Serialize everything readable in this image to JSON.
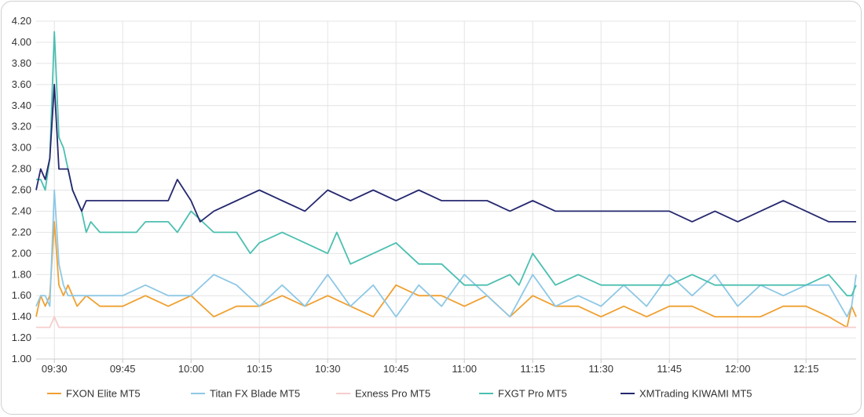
{
  "chart_data": {
    "type": "line",
    "title": "",
    "xlabel": "",
    "ylabel": "",
    "ylim": [
      1.0,
      4.2
    ],
    "yticks": [
      "1.00",
      "1.20",
      "1.40",
      "1.60",
      "1.80",
      "2.00",
      "2.20",
      "2.40",
      "2.60",
      "2.80",
      "3.00",
      "3.20",
      "3.40",
      "3.60",
      "3.80",
      "4.00",
      "4.20"
    ],
    "xlim": [
      "09:26",
      "12:26"
    ],
    "xticks": [
      "09:30",
      "09:45",
      "10:00",
      "10:15",
      "10:30",
      "10:45",
      "11:00",
      "11:15",
      "11:30",
      "11:45",
      "12:00",
      "12:15"
    ],
    "grid": true,
    "legend_position": "bottom",
    "series": [
      {
        "name": "FXON Elite MT5",
        "color": "#f0a030",
        "x": [
          "09:26",
          "09:27",
          "09:28",
          "09:29",
          "09:30",
          "09:31",
          "09:32",
          "09:33",
          "09:35",
          "09:37",
          "09:40",
          "09:45",
          "09:50",
          "09:55",
          "10:00",
          "10:05",
          "10:10",
          "10:15",
          "10:20",
          "10:25",
          "10:30",
          "10:35",
          "10:40",
          "10:45",
          "10:50",
          "10:55",
          "11:00",
          "11:05",
          "11:10",
          "11:15",
          "11:20",
          "11:25",
          "11:30",
          "11:35",
          "11:40",
          "11:45",
          "11:50",
          "11:55",
          "12:00",
          "12:05",
          "12:10",
          "12:15",
          "12:20",
          "12:24",
          "12:25",
          "12:26"
        ],
        "values": [
          1.4,
          1.6,
          1.5,
          1.6,
          2.3,
          1.7,
          1.6,
          1.7,
          1.5,
          1.6,
          1.5,
          1.5,
          1.6,
          1.5,
          1.6,
          1.4,
          1.5,
          1.5,
          1.6,
          1.5,
          1.6,
          1.5,
          1.4,
          1.7,
          1.6,
          1.6,
          1.5,
          1.6,
          1.4,
          1.6,
          1.5,
          1.5,
          1.4,
          1.5,
          1.4,
          1.5,
          1.5,
          1.4,
          1.4,
          1.4,
          1.5,
          1.5,
          1.4,
          1.3,
          1.5,
          1.4
        ]
      },
      {
        "name": "Titan FX Blade MT5",
        "color": "#8ec8e6",
        "x": [
          "09:26",
          "09:27",
          "09:28",
          "09:29",
          "09:30",
          "09:31",
          "09:32",
          "09:33",
          "09:35",
          "09:37",
          "09:40",
          "09:45",
          "09:50",
          "09:55",
          "10:00",
          "10:05",
          "10:10",
          "10:15",
          "10:20",
          "10:25",
          "10:30",
          "10:35",
          "10:40",
          "10:45",
          "10:50",
          "10:55",
          "11:00",
          "11:05",
          "11:10",
          "11:15",
          "11:20",
          "11:25",
          "11:30",
          "11:35",
          "11:40",
          "11:45",
          "11:50",
          "11:55",
          "12:00",
          "12:05",
          "12:10",
          "12:15",
          "12:20",
          "12:24",
          "12:25",
          "12:26"
        ],
        "values": [
          1.5,
          1.6,
          1.6,
          1.5,
          2.6,
          1.9,
          1.7,
          1.6,
          1.6,
          1.6,
          1.6,
          1.6,
          1.7,
          1.6,
          1.6,
          1.8,
          1.7,
          1.5,
          1.7,
          1.5,
          1.8,
          1.5,
          1.7,
          1.4,
          1.7,
          1.5,
          1.8,
          1.6,
          1.4,
          1.8,
          1.5,
          1.6,
          1.5,
          1.7,
          1.5,
          1.8,
          1.6,
          1.8,
          1.5,
          1.7,
          1.6,
          1.7,
          1.7,
          1.4,
          1.5,
          1.8
        ]
      },
      {
        "name": "Exness Pro MT5",
        "color": "#f7cccc",
        "x": [
          "09:26",
          "09:29",
          "09:30",
          "09:31",
          "12:26"
        ],
        "values": [
          1.3,
          1.3,
          1.4,
          1.3,
          1.3
        ]
      },
      {
        "name": "FXGT Pro MT5",
        "color": "#4bbfb0",
        "x": [
          "09:26",
          "09:27",
          "09:28",
          "09:29",
          "09:30",
          "09:31",
          "09:32",
          "09:33",
          "09:34",
          "09:36",
          "09:37",
          "09:38",
          "09:40",
          "09:42",
          "09:45",
          "09:48",
          "09:50",
          "09:55",
          "09:57",
          "10:00",
          "10:05",
          "10:10",
          "10:13",
          "10:15",
          "10:20",
          "10:25",
          "10:30",
          "10:32",
          "10:35",
          "10:40",
          "10:45",
          "10:50",
          "10:55",
          "11:00",
          "11:05",
          "11:10",
          "11:12",
          "11:15",
          "11:20",
          "11:25",
          "11:30",
          "11:35",
          "11:40",
          "11:45",
          "11:50",
          "11:55",
          "12:00",
          "12:05",
          "12:10",
          "12:15",
          "12:20",
          "12:24",
          "12:25",
          "12:26"
        ],
        "values": [
          2.7,
          2.7,
          2.6,
          2.9,
          4.1,
          3.1,
          3.0,
          2.8,
          2.6,
          2.4,
          2.2,
          2.3,
          2.2,
          2.2,
          2.2,
          2.2,
          2.3,
          2.3,
          2.2,
          2.4,
          2.2,
          2.2,
          2.0,
          2.1,
          2.2,
          2.1,
          2.0,
          2.2,
          1.9,
          2.0,
          2.1,
          1.9,
          1.9,
          1.7,
          1.7,
          1.8,
          1.7,
          2.0,
          1.7,
          1.8,
          1.7,
          1.7,
          1.7,
          1.7,
          1.8,
          1.7,
          1.7,
          1.7,
          1.7,
          1.7,
          1.8,
          1.6,
          1.6,
          1.7
        ]
      },
      {
        "name": "XMTrading KIWAMI MT5",
        "color": "#25286e",
        "x": [
          "09:26",
          "09:27",
          "09:28",
          "09:29",
          "09:30",
          "09:31",
          "09:32",
          "09:33",
          "09:34",
          "09:36",
          "09:37",
          "09:40",
          "09:45",
          "09:50",
          "09:55",
          "09:57",
          "10:00",
          "10:02",
          "10:05",
          "10:10",
          "10:15",
          "10:20",
          "10:25",
          "10:30",
          "10:35",
          "10:40",
          "10:45",
          "10:50",
          "10:55",
          "11:00",
          "11:05",
          "11:10",
          "11:15",
          "11:20",
          "11:25",
          "11:30",
          "11:35",
          "11:40",
          "11:45",
          "11:50",
          "11:55",
          "12:00",
          "12:05",
          "12:10",
          "12:15",
          "12:20",
          "12:24",
          "12:25",
          "12:26"
        ],
        "values": [
          2.6,
          2.8,
          2.7,
          2.9,
          3.6,
          2.8,
          2.8,
          2.8,
          2.6,
          2.4,
          2.5,
          2.5,
          2.5,
          2.5,
          2.5,
          2.7,
          2.5,
          2.3,
          2.4,
          2.5,
          2.6,
          2.5,
          2.4,
          2.6,
          2.5,
          2.6,
          2.5,
          2.6,
          2.5,
          2.5,
          2.5,
          2.4,
          2.5,
          2.4,
          2.4,
          2.4,
          2.4,
          2.4,
          2.4,
          2.3,
          2.4,
          2.3,
          2.4,
          2.5,
          2.4,
          2.3,
          2.3,
          2.3,
          2.3
        ]
      }
    ]
  }
}
